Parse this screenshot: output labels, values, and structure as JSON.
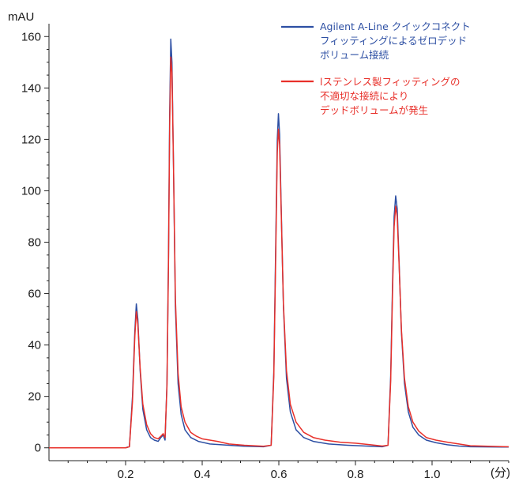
{
  "chart_data": {
    "type": "line",
    "ylabel": "mAU",
    "xlabel": "(分)",
    "xlim": [
      0,
      1.2
    ],
    "ylim": [
      -5,
      165
    ],
    "x_ticks": [
      0.2,
      0.4,
      0.6,
      0.8,
      1.0
    ],
    "x_tick_labels": [
      "0.2",
      "0.4",
      "0.6",
      "0.8",
      "1.0"
    ],
    "y_ticks": [
      0,
      20,
      40,
      60,
      80,
      100,
      120,
      140,
      160
    ],
    "y_tick_labels": [
      "0",
      "20",
      "40",
      "60",
      "80",
      "100",
      "120",
      "140",
      "160"
    ],
    "grid": false,
    "legend_position": "top-right",
    "series": [
      {
        "name_lines": [
          "Agilent A-Line クイックコネクト",
          "フィッティングによるゼロデッド",
          "ボリューム接続"
        ],
        "color": "#2d4fa3",
        "points": [
          [
            0.0,
            0
          ],
          [
            0.2,
            0
          ],
          [
            0.21,
            0.5
          ],
          [
            0.218,
            20
          ],
          [
            0.224,
            45
          ],
          [
            0.228,
            56
          ],
          [
            0.232,
            50
          ],
          [
            0.238,
            30
          ],
          [
            0.245,
            15
          ],
          [
            0.255,
            7
          ],
          [
            0.265,
            4
          ],
          [
            0.275,
            3
          ],
          [
            0.285,
            2.5
          ],
          [
            0.292,
            4
          ],
          [
            0.298,
            5
          ],
          [
            0.303,
            3
          ],
          [
            0.308,
            25
          ],
          [
            0.312,
            75
          ],
          [
            0.315,
            130
          ],
          [
            0.318,
            159
          ],
          [
            0.321,
            150
          ],
          [
            0.325,
            110
          ],
          [
            0.33,
            55
          ],
          [
            0.337,
            25
          ],
          [
            0.345,
            13
          ],
          [
            0.355,
            7
          ],
          [
            0.37,
            4
          ],
          [
            0.39,
            2.5
          ],
          [
            0.42,
            1.5
          ],
          [
            0.47,
            1
          ],
          [
            0.51,
            0.6
          ],
          [
            0.56,
            0.4
          ],
          [
            0.58,
            1
          ],
          [
            0.587,
            30
          ],
          [
            0.592,
            80
          ],
          [
            0.596,
            120
          ],
          [
            0.599,
            130
          ],
          [
            0.602,
            122
          ],
          [
            0.606,
            95
          ],
          [
            0.612,
            55
          ],
          [
            0.62,
            27
          ],
          [
            0.63,
            14
          ],
          [
            0.645,
            7
          ],
          [
            0.665,
            4
          ],
          [
            0.69,
            2.5
          ],
          [
            0.73,
            1.5
          ],
          [
            0.78,
            1
          ],
          [
            0.84,
            0.6
          ],
          [
            0.87,
            0.4
          ],
          [
            0.885,
            1
          ],
          [
            0.892,
            28
          ],
          [
            0.897,
            65
          ],
          [
            0.901,
            90
          ],
          [
            0.905,
            98
          ],
          [
            0.909,
            93
          ],
          [
            0.914,
            72
          ],
          [
            0.92,
            45
          ],
          [
            0.928,
            25
          ],
          [
            0.938,
            14
          ],
          [
            0.95,
            8
          ],
          [
            0.965,
            5
          ],
          [
            0.985,
            3
          ],
          [
            1.01,
            2
          ],
          [
            1.04,
            1.2
          ],
          [
            1.07,
            0.7
          ],
          [
            1.1,
            0.4
          ],
          [
            1.2,
            0.3
          ]
        ]
      },
      {
        "name_lines": [
          "lステンレス製フィッティングの",
          "不適切な接続により",
          "デッドボリュームが発生"
        ],
        "color": "#e8302a",
        "points": [
          [
            0.0,
            0
          ],
          [
            0.2,
            0
          ],
          [
            0.21,
            0.4
          ],
          [
            0.218,
            18
          ],
          [
            0.224,
            43
          ],
          [
            0.228,
            53
          ],
          [
            0.232,
            48
          ],
          [
            0.238,
            31
          ],
          [
            0.245,
            17
          ],
          [
            0.255,
            9
          ],
          [
            0.265,
            5.5
          ],
          [
            0.275,
            4
          ],
          [
            0.285,
            3.5
          ],
          [
            0.292,
            4.5
          ],
          [
            0.298,
            5.5
          ],
          [
            0.303,
            4
          ],
          [
            0.308,
            24
          ],
          [
            0.312,
            72
          ],
          [
            0.315,
            125
          ],
          [
            0.318,
            152
          ],
          [
            0.321,
            146
          ],
          [
            0.325,
            110
          ],
          [
            0.33,
            58
          ],
          [
            0.337,
            29
          ],
          [
            0.345,
            16
          ],
          [
            0.355,
            10
          ],
          [
            0.37,
            6
          ],
          [
            0.385,
            4.5
          ],
          [
            0.4,
            3.5
          ],
          [
            0.42,
            3
          ],
          [
            0.44,
            2.5
          ],
          [
            0.47,
            1.5
          ],
          [
            0.51,
            1
          ],
          [
            0.56,
            0.6
          ],
          [
            0.58,
            1
          ],
          [
            0.587,
            28
          ],
          [
            0.592,
            76
          ],
          [
            0.596,
            115
          ],
          [
            0.599,
            124
          ],
          [
            0.602,
            118
          ],
          [
            0.606,
            93
          ],
          [
            0.612,
            56
          ],
          [
            0.62,
            30
          ],
          [
            0.63,
            17
          ],
          [
            0.645,
            10
          ],
          [
            0.665,
            6
          ],
          [
            0.69,
            4
          ],
          [
            0.72,
            3
          ],
          [
            0.76,
            2.2
          ],
          [
            0.8,
            1.8
          ],
          [
            0.84,
            1.2
          ],
          [
            0.87,
            0.7
          ],
          [
            0.885,
            1
          ],
          [
            0.892,
            26
          ],
          [
            0.897,
            62
          ],
          [
            0.901,
            86
          ],
          [
            0.905,
            94
          ],
          [
            0.909,
            90
          ],
          [
            0.914,
            71
          ],
          [
            0.92,
            46
          ],
          [
            0.928,
            27
          ],
          [
            0.938,
            16
          ],
          [
            0.95,
            10
          ],
          [
            0.965,
            6.5
          ],
          [
            0.985,
            4
          ],
          [
            1.01,
            3
          ],
          [
            1.04,
            2.2
          ],
          [
            1.07,
            1.5
          ],
          [
            1.1,
            0.8
          ],
          [
            1.2,
            0.4
          ]
        ]
      }
    ]
  }
}
